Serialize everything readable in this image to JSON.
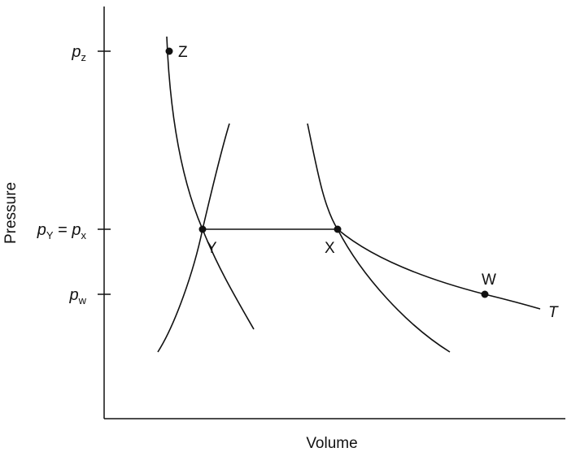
{
  "axes": {
    "x_label": "Volume",
    "y_label": "Pressure"
  },
  "y_ticks": [
    {
      "main": "p",
      "sub": "z",
      "rest": ""
    },
    {
      "main": "p",
      "sub": "Y",
      "rest": " = ",
      "main2": "p",
      "sub2": "x"
    },
    {
      "main": "p",
      "sub": "w",
      "rest": ""
    }
  ],
  "points": {
    "z": "Z",
    "y": "Y",
    "x": "X",
    "w": "W"
  },
  "curve_label": "T"
}
